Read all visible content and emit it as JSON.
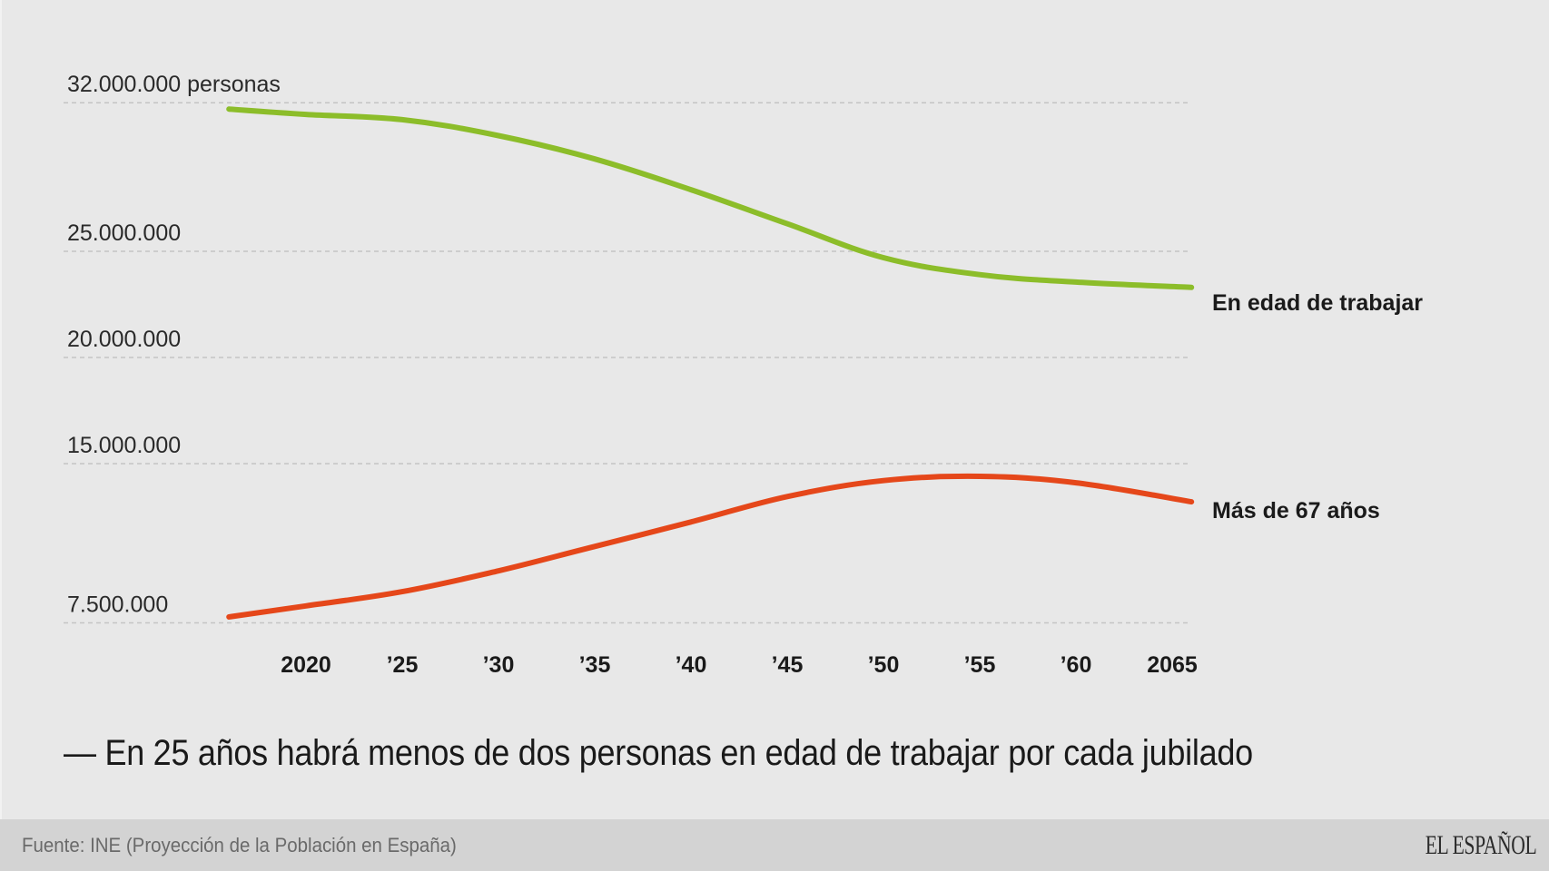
{
  "chart_data": {
    "type": "line",
    "title": "",
    "subtitle": "— En 25 años habrá menos de dos personas en edad de trabajar por cada jubilado",
    "xlabel": "",
    "ylabel": "personas",
    "ylim": [
      7500000,
      32000000
    ],
    "xlim": [
      2016,
      2066
    ],
    "grid": true,
    "y_ticks": [
      {
        "value": 32000000,
        "label": "32.000.000 personas"
      },
      {
        "value": 25000000,
        "label": "25.000.000"
      },
      {
        "value": 20000000,
        "label": "20.000.000"
      },
      {
        "value": 15000000,
        "label": "15.000.000"
      },
      {
        "value": 7500000,
        "label": "7.500.000"
      }
    ],
    "x_ticks": [
      {
        "value": 2020,
        "label": "2020"
      },
      {
        "value": 2025,
        "label": "’25"
      },
      {
        "value": 2030,
        "label": "’30"
      },
      {
        "value": 2035,
        "label": "’35"
      },
      {
        "value": 2040,
        "label": "’40"
      },
      {
        "value": 2045,
        "label": "’45"
      },
      {
        "value": 2050,
        "label": "’50"
      },
      {
        "value": 2055,
        "label": "’55"
      },
      {
        "value": 2060,
        "label": "’60"
      },
      {
        "value": 2065,
        "label": "2065"
      }
    ],
    "x": [
      2016,
      2020,
      2025,
      2030,
      2035,
      2040,
      2045,
      2050,
      2055,
      2060,
      2066
    ],
    "series": [
      {
        "name": "En edad de trabajar",
        "color": "#8cbd2a",
        "values": [
          31700000,
          31450000,
          31200000,
          30450000,
          29350000,
          27900000,
          26300000,
          24700000,
          23900000,
          23550000,
          23300000
        ]
      },
      {
        "name": "Más de 67 años",
        "color": "#e5471a",
        "values": [
          7780000,
          8300000,
          8970000,
          9950000,
          11100000,
          12250000,
          13450000,
          14200000,
          14400000,
          14100000,
          13200000
        ]
      }
    ],
    "legend": "inline-right"
  },
  "footer": {
    "source": "Fuente: INE (Proyección de la Población en España)",
    "brand": "EL ESPAÑOL"
  },
  "colors": {
    "background": "#e8e8e8",
    "footer_background": "#d3d3d3",
    "gridline": "#c4c4c4"
  }
}
